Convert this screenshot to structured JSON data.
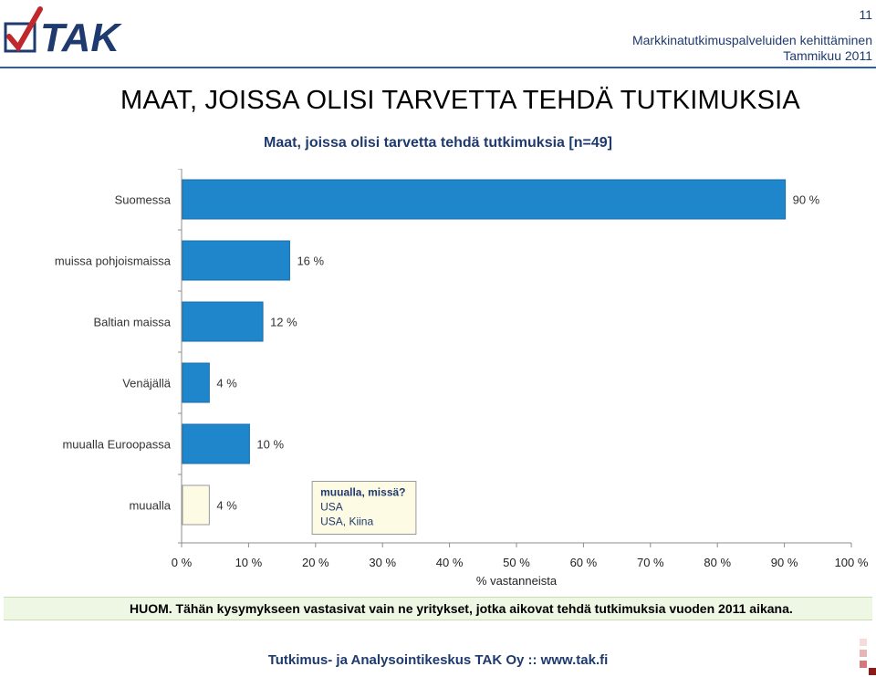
{
  "header": {
    "logo_text": "TAK",
    "page_number": "11",
    "org_line": "Markkinatutkimuspalveluiden kehittäminen",
    "date_line": "Tammikuu 2011"
  },
  "title": "MAAT, JOISSA OLISI TARVETTA TEHDÄ TUTKIMUKSIA",
  "subtitle": "Maat, joissa olisi tarvetta tehdä tutkimuksia [n=49]",
  "chart_data": {
    "type": "bar",
    "orientation": "horizontal",
    "categories": [
      "Suomessa",
      "muissa pohjoismaissa",
      "Baltian maissa",
      "Venäjällä",
      "muualla Euroopassa",
      "muualla"
    ],
    "values": [
      90,
      16,
      12,
      4,
      10,
      4
    ],
    "data_labels": [
      "90 %",
      "16 %",
      "12 %",
      "4 %",
      "10 %",
      "4 %"
    ],
    "xlim": [
      0,
      100
    ],
    "x_ticks": [
      "0 %",
      "10 %",
      "20 %",
      "30 %",
      "40 %",
      "50 %",
      "60 %",
      "70 %",
      "80 %",
      "90 %",
      "100 %"
    ],
    "xlabel": "% vastanneista",
    "ylabel": "",
    "grid": false,
    "colors": {
      "bar": "#1f86cc",
      "bar_outline": "#1a6ea8",
      "highlight_bar": "#fdfbe4",
      "highlight_outline": "#9a9a9a"
    },
    "annotation": {
      "title": "muualla, missä?",
      "lines": [
        "USA",
        "USA, Kiina"
      ]
    }
  },
  "note": "HUOM. Tähän kysymykseen vastasivat vain ne yritykset, jotka aikovat tehdä tutkimuksia vuoden 2011 aikana.",
  "footer": "Tutkimus- ja Analysointikeskus TAK Oy :: www.tak.fi"
}
